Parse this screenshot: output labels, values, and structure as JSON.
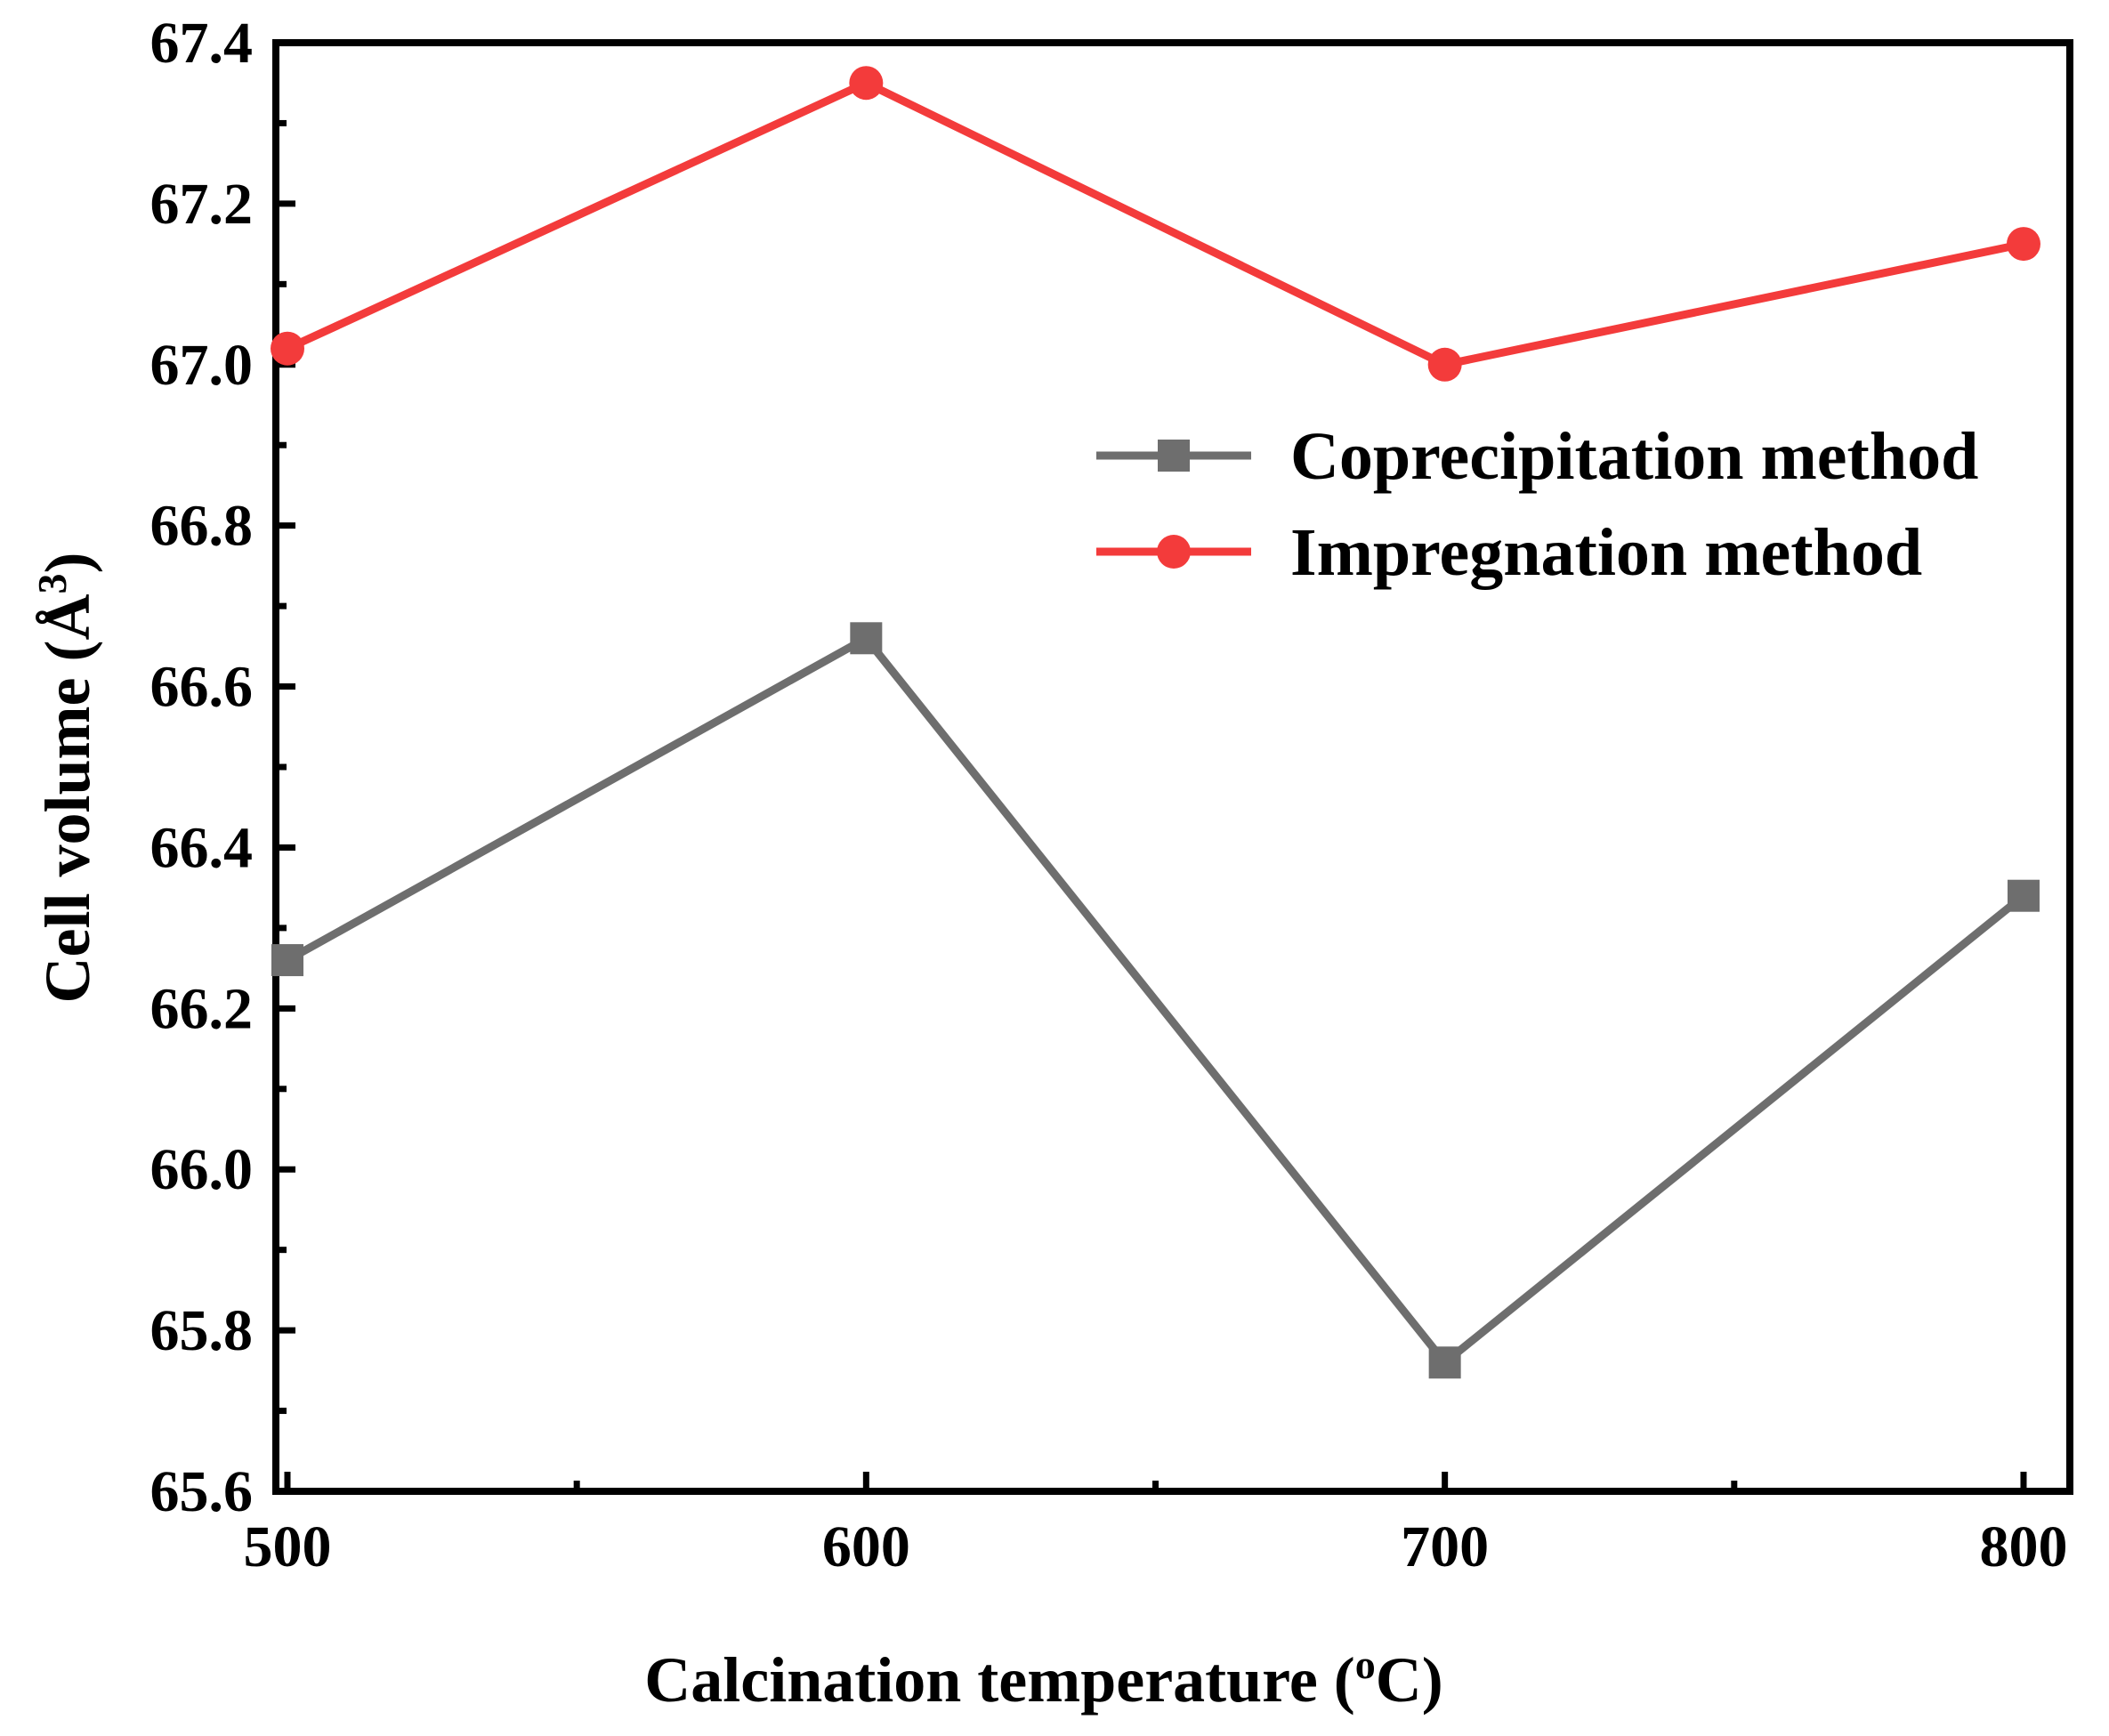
{
  "chart_data": {
    "type": "line",
    "title": "",
    "xlabel": "Calcination temperature (",
    "xlabel_sup": "o",
    "xlabel_end": "C)",
    "ylabel": "Cell volume (Å",
    "ylabel_sup": "3",
    "ylabel_end": ")",
    "x": [
      500,
      600,
      700,
      800
    ],
    "xlim": [
      498,
      808
    ],
    "ylim": [
      65.6,
      67.4
    ],
    "xticks": [
      500,
      600,
      700,
      800
    ],
    "xtick_labels": [
      "500",
      "600",
      "700",
      "800"
    ],
    "yticks": [
      65.6,
      65.8,
      66.0,
      66.2,
      66.4,
      66.6,
      66.8,
      67.0,
      67.2,
      67.4
    ],
    "ytick_labels": [
      "65.6",
      "65.8",
      "66.0",
      "66.2",
      "66.4",
      "66.6",
      "66.8",
      "67.0",
      "67.2",
      "67.4"
    ],
    "legend_position": "center-right",
    "grid": false,
    "series": [
      {
        "name": "Coprecipitation method",
        "marker": "square",
        "color": "#6e6e6e",
        "values": [
          66.26,
          66.66,
          65.76,
          66.34
        ]
      },
      {
        "name": "Impregnation method",
        "marker": "circle",
        "color": "#f33b3b",
        "values": [
          67.02,
          67.35,
          67.0,
          67.15
        ]
      }
    ]
  }
}
